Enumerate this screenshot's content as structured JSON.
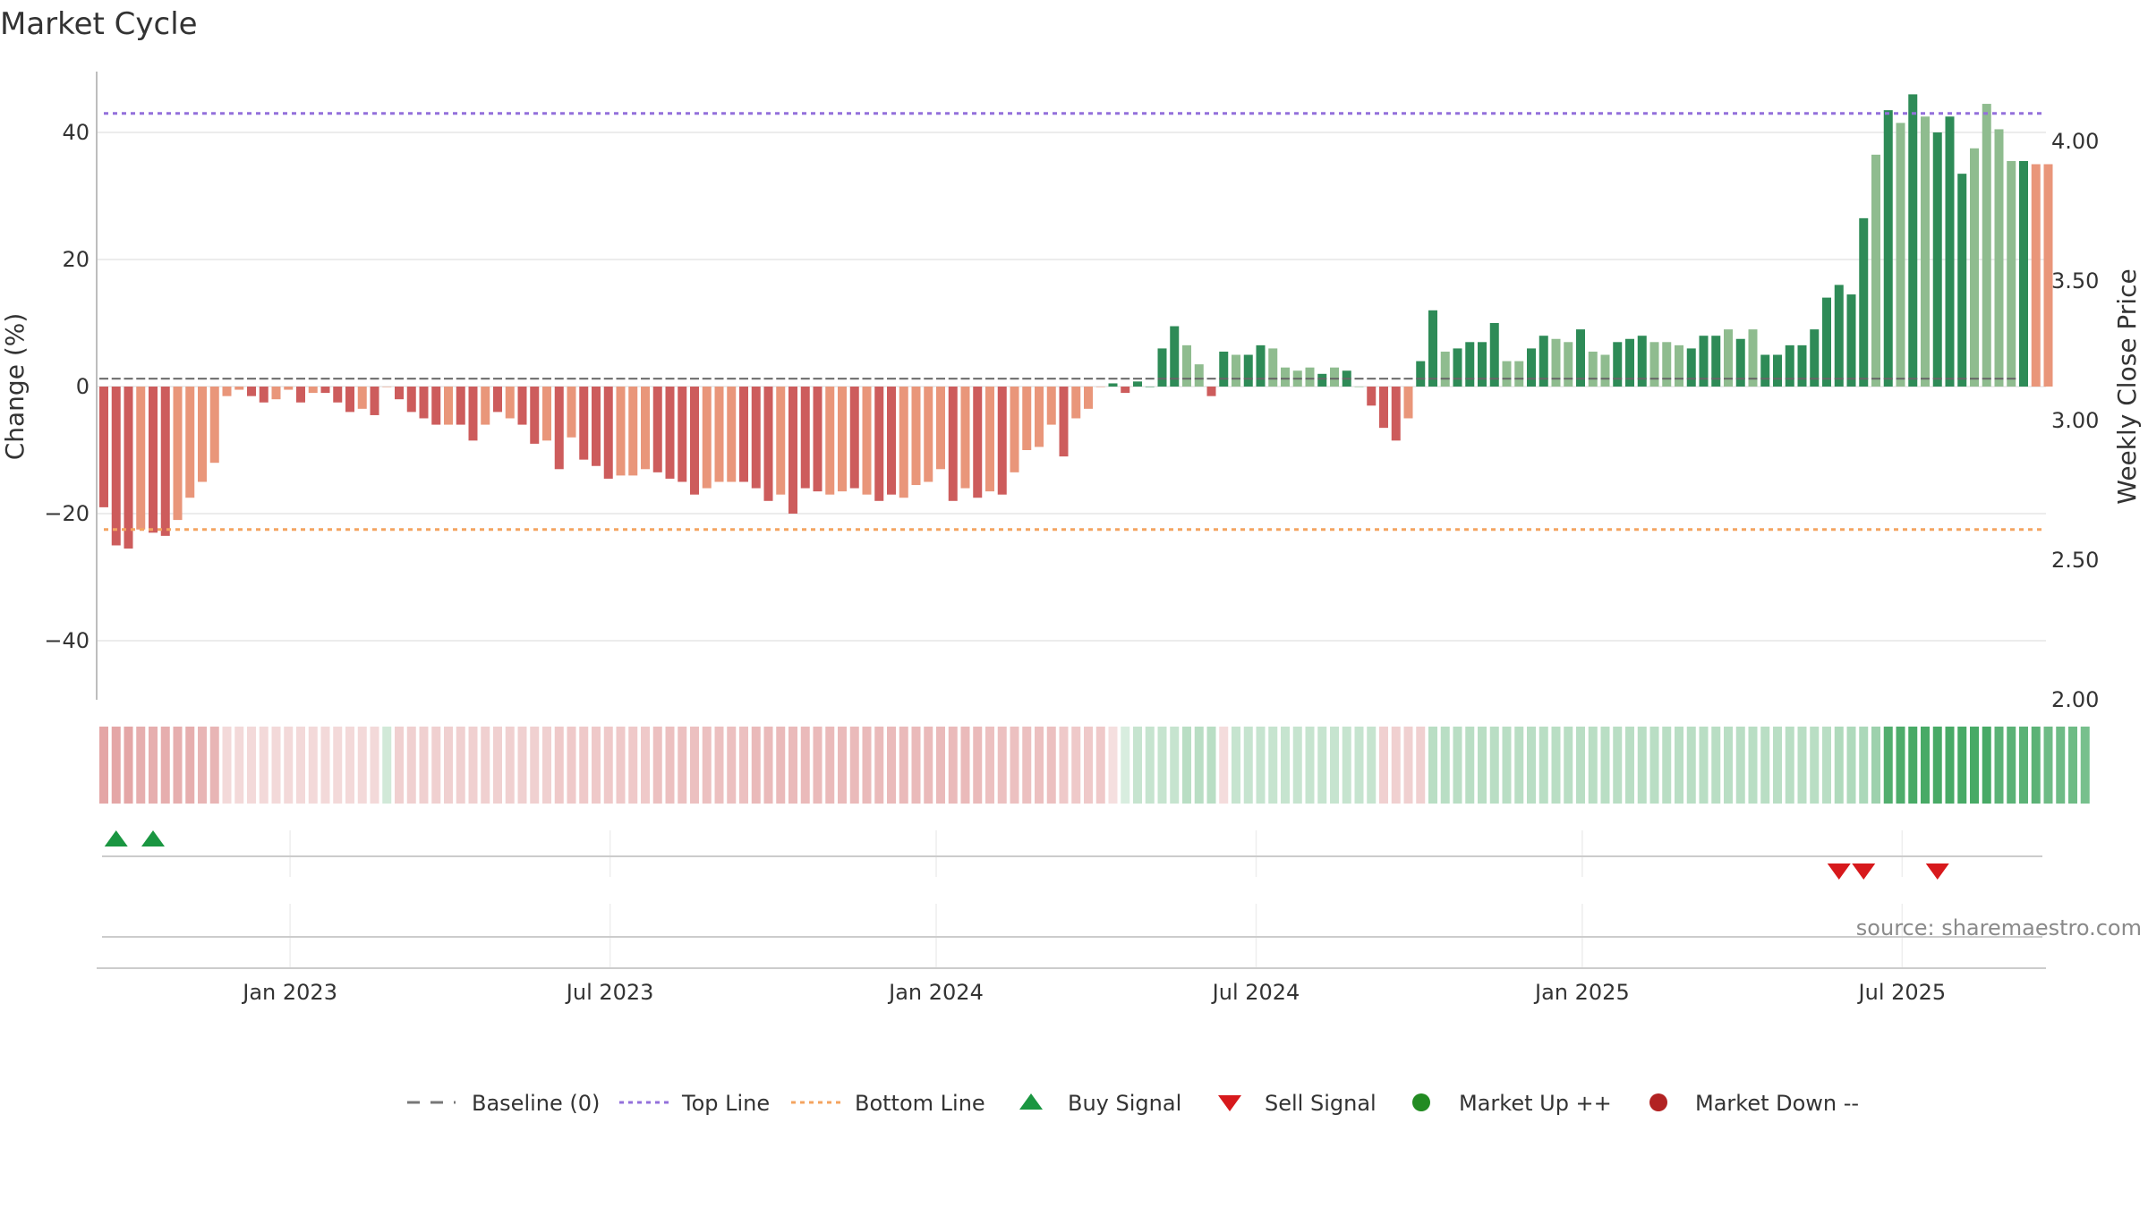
{
  "chart_data": {
    "type": "bar",
    "title": "Market Cycle",
    "ylabel_left": "Change (%)",
    "ylabel_right": "Weekly Close Price",
    "ylim_left": [
      -50,
      50
    ],
    "ylim_right": [
      2.0,
      4.25
    ],
    "yticks_left": [
      40,
      20,
      0,
      -20,
      -40
    ],
    "ytick_labels_left": [
      "40",
      "20",
      "0",
      "−20",
      "−40"
    ],
    "yticks_right": [
      4.0,
      3.5,
      3.0,
      2.5,
      2.0
    ],
    "ytick_labels_right": [
      "4.00",
      "3.50",
      "3.00",
      "2.50",
      "2.00"
    ],
    "xticks": [
      {
        "label": "Jan 2023",
        "week": 15.5
      },
      {
        "label": "Jul 2023",
        "week": 41.5
      },
      {
        "label": "Jan 2024",
        "week": 68.0
      },
      {
        "label": "Jul 2024",
        "week": 94.0
      },
      {
        "label": "Jan 2025",
        "week": 120.5
      },
      {
        "label": "Jul 2025",
        "week": 146.5
      }
    ],
    "top_line": 43,
    "bottom_line": -22.5,
    "baseline": 0,
    "grid": true,
    "colors": {
      "strong_down": "#cd5c5c",
      "weak_down": "#e9967a",
      "strong_up": "#2e8b57",
      "weak_up": "#8fbc8f",
      "top_line": "#9370db",
      "bottom_line": "#f4a460",
      "buy": "#1a9641",
      "sell": "#d7191c",
      "market_up": "#228b22",
      "market_down": "#b22222",
      "baseline": "#777777",
      "grid": "#e6e6e6"
    },
    "bar_values": [
      -19,
      -25,
      -25.5,
      -22.5,
      -23,
      -23.5,
      -21,
      -17.5,
      -15,
      -12,
      -1.5,
      -0.5,
      -1.5,
      -2.5,
      -2,
      -0.5,
      -2.5,
      -1,
      -1,
      -2.5,
      -4,
      -3.5,
      -4.5,
      0,
      -2,
      -4,
      -5,
      -6,
      -6,
      -6,
      -8.5,
      -6,
      -4,
      -5,
      -6,
      -9,
      -8.5,
      -13,
      -8,
      -11.5,
      -12.5,
      -14.5,
      -14,
      -14,
      -13,
      -13.5,
      -14.5,
      -15,
      -17,
      -16,
      -15,
      -15,
      -15,
      -16,
      -18,
      -17,
      -20,
      -16,
      -16.5,
      -17,
      -16.5,
      -16,
      -17,
      -18,
      -17,
      -17.5,
      -15.5,
      -15,
      -13,
      -18,
      -16,
      -17.5,
      -16.5,
      -17,
      -13.5,
      -10,
      -9.5,
      -6,
      -11,
      -5,
      -3.5,
      0,
      0.5,
      -1,
      0.8,
      0,
      6,
      9.5,
      6.5,
      3.5,
      -1.5,
      5.5,
      5,
      5,
      6.5,
      6,
      3,
      2.5,
      3,
      2,
      3,
      2.5,
      0,
      -3,
      -6.5,
      -8.5,
      -5,
      4,
      12,
      5.5,
      6,
      7,
      7,
      10,
      4,
      4,
      6,
      8,
      7.5,
      7,
      9,
      5.5,
      5,
      7,
      7.5,
      8,
      7,
      7,
      6.5,
      6,
      8,
      8,
      9,
      7.5,
      9,
      5,
      5,
      6.5,
      6.5,
      9,
      14,
      16,
      14.5,
      26.5,
      36.5,
      43.5,
      41.5,
      46,
      42.5,
      40,
      42.5,
      33.5,
      37.5,
      44.5,
      40.5,
      35.5,
      35.5,
      35,
      35
    ],
    "bar_kind": [
      "sd",
      "sd",
      "sd",
      "wd",
      "sd",
      "sd",
      "wd",
      "wd",
      "wd",
      "wd",
      "wd",
      "wd",
      "sd",
      "sd",
      "wd",
      "wd",
      "sd",
      "wd",
      "sd",
      "sd",
      "sd",
      "wd",
      "sd",
      "wd",
      "sd",
      "sd",
      "sd",
      "sd",
      "wd",
      "sd",
      "sd",
      "wd",
      "sd",
      "wd",
      "sd",
      "sd",
      "wd",
      "sd",
      "wd",
      "sd",
      "sd",
      "sd",
      "wd",
      "wd",
      "wd",
      "sd",
      "sd",
      "sd",
      "sd",
      "wd",
      "wd",
      "wd",
      "sd",
      "sd",
      "sd",
      "wd",
      "sd",
      "sd",
      "sd",
      "wd",
      "wd",
      "sd",
      "wd",
      "sd",
      "sd",
      "wd",
      "wd",
      "wd",
      "wd",
      "sd",
      "wd",
      "sd",
      "wd",
      "sd",
      "wd",
      "wd",
      "wd",
      "wd",
      "sd",
      "wd",
      "wd",
      "wd",
      "su",
      "sd",
      "su",
      "su",
      "su",
      "su",
      "wu",
      "wu",
      "sd",
      "su",
      "wu",
      "su",
      "su",
      "wu",
      "wu",
      "wu",
      "wu",
      "su",
      "wu",
      "su",
      "wu",
      "sd",
      "sd",
      "sd",
      "wd",
      "su",
      "su",
      "wu",
      "su",
      "su",
      "su",
      "su",
      "wu",
      "wu",
      "su",
      "su",
      "wu",
      "wu",
      "su",
      "wu",
      "wu",
      "su",
      "su",
      "su",
      "wu",
      "wu",
      "wu",
      "su",
      "su",
      "su",
      "wu",
      "su",
      "wu",
      "su",
      "su",
      "su",
      "su",
      "su",
      "su",
      "su",
      "su",
      "su",
      "wu",
      "su",
      "wu",
      "su",
      "wu",
      "su",
      "su",
      "su",
      "wu",
      "wu",
      "wu",
      "wu",
      "su"
    ],
    "price_values": [
      3.15,
      3.15,
      3.15,
      3.15,
      3.15,
      3.15,
      3.15,
      3.15,
      3.15,
      3.15,
      3.15,
      3.15,
      3.15,
      3.15,
      3.15,
      3.15,
      3.15,
      3.15,
      3.15,
      3.15,
      3.15,
      3.15,
      3.15,
      3.15,
      3.15,
      3.15,
      3.15,
      3.15,
      3.15,
      3.15,
      3.15,
      3.15,
      3.15,
      3.15,
      3.15,
      3.15,
      3.15,
      3.15,
      3.15,
      3.15,
      3.15,
      3.15,
      3.15,
      3.15,
      3.15,
      3.15,
      3.15,
      3.15,
      3.15,
      3.15,
      3.15,
      3.15,
      3.15,
      3.15,
      3.15,
      3.15,
      3.15,
      3.15,
      3.15,
      3.15,
      3.15,
      3.15,
      3.15,
      3.15,
      3.15,
      3.15,
      3.15,
      3.15,
      3.15,
      3.15,
      3.15,
      3.15,
      3.15,
      3.15,
      3.15,
      3.15,
      3.15,
      3.15,
      3.15,
      3.15,
      3.15,
      3.15,
      3.15,
      3.15,
      3.15,
      3.15,
      3.15,
      3.15,
      3.15,
      3.15,
      3.15,
      3.15,
      3.15,
      3.15,
      3.15,
      3.15,
      3.15,
      3.15,
      3.15,
      3.15,
      3.15,
      3.15,
      3.15,
      3.15,
      3.15,
      3.15,
      3.15,
      3.15,
      3.15,
      3.15,
      3.15,
      3.15,
      3.15,
      3.15,
      3.15,
      3.15,
      3.15,
      3.15,
      3.15,
      3.15,
      3.15,
      3.15,
      3.15,
      3.15,
      3.15,
      3.15,
      3.15,
      3.15,
      3.15,
      3.15,
      3.15,
      3.15,
      3.15,
      3.15,
      3.15,
      3.15,
      3.15,
      3.15,
      3.15,
      3.15,
      3.15,
      3.15,
      3.15,
      3.15,
      3.15,
      3.15,
      3.15,
      3.15,
      3.15,
      3.15,
      3.15,
      3.15,
      3.15,
      3.15,
      3.15,
      3.15
    ],
    "strip_values": [
      -45,
      -45,
      -45,
      -40,
      -40,
      -40,
      -40,
      -40,
      -35,
      -35,
      -12,
      -12,
      -12,
      -12,
      -12,
      -12,
      -12,
      -12,
      -12,
      -12,
      -12,
      -12,
      -12,
      12,
      -18,
      -18,
      -18,
      -18,
      -18,
      -18,
      -18,
      -18,
      -18,
      -18,
      -18,
      -18,
      -18,
      -22,
      -22,
      -22,
      -22,
      -22,
      -22,
      -22,
      -22,
      -28,
      -28,
      -28,
      -28,
      -28,
      -28,
      -28,
      -28,
      -32,
      -32,
      -32,
      -32,
      -32,
      -32,
      -32,
      -32,
      -32,
      -32,
      -32,
      -32,
      -32,
      -32,
      -32,
      -32,
      -32,
      -32,
      -32,
      -28,
      -28,
      -28,
      -28,
      -28,
      -28,
      -22,
      -22,
      -22,
      -22,
      -8,
      8,
      18,
      18,
      18,
      18,
      25,
      25,
      25,
      -10,
      18,
      18,
      18,
      18,
      18,
      18,
      18,
      18,
      18,
      18,
      18,
      18,
      -18,
      -18,
      -18,
      -18,
      25,
      25,
      25,
      25,
      25,
      25,
      25,
      25,
      25,
      25,
      25,
      25,
      25,
      25,
      25,
      25,
      25,
      25,
      25,
      25,
      25,
      25,
      25,
      25,
      25,
      25,
      25,
      25,
      25,
      25,
      25,
      25,
      25,
      30,
      30,
      32,
      40,
      80,
      82,
      85,
      85,
      85,
      85,
      85,
      85,
      85,
      75,
      75,
      75,
      75,
      65,
      65,
      65,
      60
    ],
    "buy_signals": [
      1,
      4
    ],
    "sell_signals": [
      141,
      143,
      149
    ],
    "legend": [
      "Baseline (0)",
      "Top Line",
      "Bottom Line",
      "Buy Signal",
      "Sell Signal",
      "Market Up ++",
      "Market Down --"
    ],
    "source": "source: sharemaestro.com"
  }
}
